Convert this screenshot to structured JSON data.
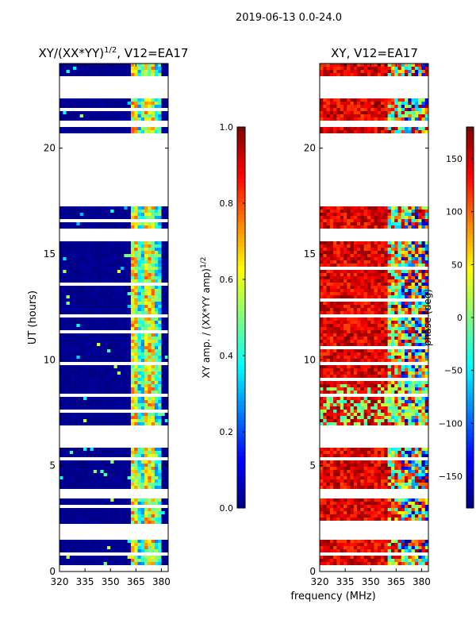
{
  "figure": {
    "suptitle": "2019-06-13 0.0-24.0",
    "xlabel": "frequency (MHz)"
  },
  "colors": {
    "jet": [
      "#00007f",
      "#0000ff",
      "#007fff",
      "#00ffff",
      "#7fff7f",
      "#ffff00",
      "#ff7f00",
      "#ff0000",
      "#7f0000"
    ],
    "flag": "#ffffff",
    "background": "#ffffff"
  },
  "chart_data": [
    {
      "type": "heatmap",
      "title_main": "XY/(XX*YY)",
      "title_sup": "1/2",
      "title_suffix": ", V12=EA17",
      "ylabel": "UT (hours)",
      "xlim": [
        320,
        384
      ],
      "ylim": [
        0,
        24
      ],
      "xticks": [
        320,
        335,
        350,
        365,
        380
      ],
      "yticks": [
        0,
        5,
        10,
        15,
        20
      ],
      "colorbar": {
        "label_main": "XY amp. / (XX*YY amp)",
        "label_sup": "1/2",
        "range": [
          0.0,
          1.0
        ],
        "ticks": [
          "0.0",
          "0.2",
          "0.4",
          "0.6",
          "0.8",
          "1.0"
        ],
        "tick_values": [
          0.0,
          0.2,
          0.4,
          0.6,
          0.8,
          1.0
        ]
      },
      "flagged_ut_ranges": [
        [
          19.6,
          20.8
        ],
        [
          17.4,
          19.6
        ],
        [
          15.7,
          16.3
        ],
        [
          6.0,
          6.9
        ],
        [
          3.6,
          3.9
        ],
        [
          0.0,
          0.3
        ],
        [
          1.7,
          2.3
        ],
        [
          21.1,
          21.4
        ],
        [
          22.5,
          23.4
        ]
      ],
      "signal_band_mhz": [
        362,
        380
      ],
      "signal_description": "low amplitude (~0.0) outside band; 0.4-0.8 inside 362-380 MHz"
    },
    {
      "type": "heatmap",
      "title": "XY, V12=EA17",
      "ylabel": "",
      "xlim": [
        320,
        384
      ],
      "ylim": [
        0,
        24
      ],
      "xticks": [
        320,
        335,
        350,
        365,
        380
      ],
      "yticks": [
        0,
        5,
        10,
        15,
        20
      ],
      "colorbar": {
        "label": "phase (deg)",
        "range": [
          -180,
          180
        ],
        "ticks": [
          "−150",
          "−100",
          "−50",
          "0",
          "50",
          "100",
          "150"
        ],
        "tick_values": [
          -150,
          -100,
          -50,
          0,
          50,
          100,
          150
        ]
      },
      "flagged_ut_ranges": [
        [
          19.6,
          20.8
        ],
        [
          17.4,
          19.6
        ],
        [
          15.7,
          16.3
        ],
        [
          6.0,
          6.9
        ],
        [
          3.6,
          3.9
        ],
        [
          0.0,
          0.3
        ],
        [
          1.7,
          2.3
        ],
        [
          21.1,
          21.4
        ],
        [
          22.5,
          23.4
        ]
      ],
      "signal_description": "phase mostly +100 to +180 deg for 320-360 MHz, scattered values above 360 MHz"
    }
  ]
}
